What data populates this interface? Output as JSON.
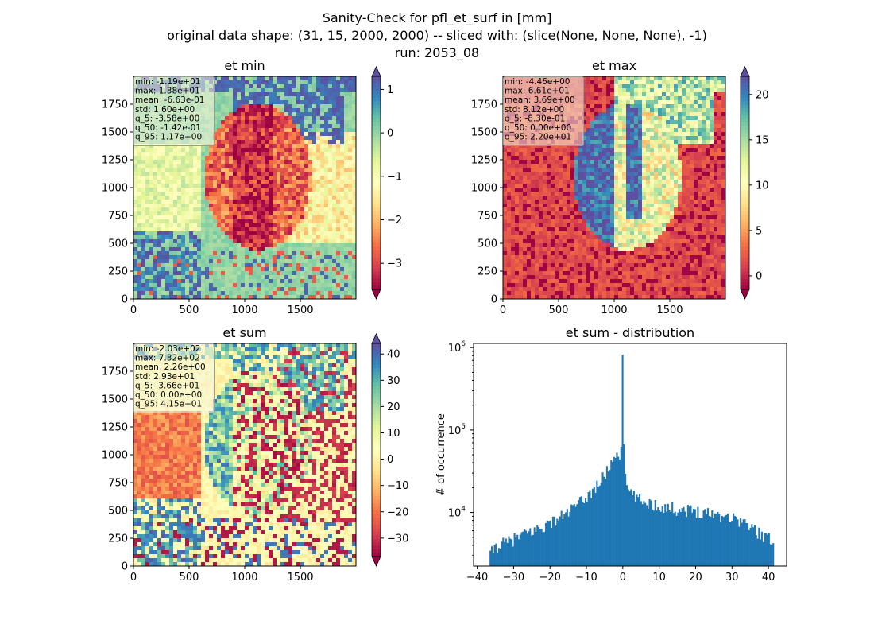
{
  "figure": {
    "title_lines": [
      "Sanity-Check for pfl_et_surf in [mm]",
      "original data shape: (31, 15, 2000, 2000) -- sliced with: (slice(None, None, None), -1)",
      "run: 2053_08"
    ]
  },
  "chart_data": [
    {
      "type": "heatmap",
      "title": "et min",
      "xlim": [
        0,
        2000
      ],
      "ylim": [
        0,
        2000
      ],
      "xticks": [
        "0",
        "500",
        "1000",
        "1500"
      ],
      "yticks": [
        "0",
        "250",
        "500",
        "750",
        "1000",
        "1250",
        "1500",
        "1750"
      ],
      "xtick_values": [
        0,
        500,
        1000,
        1500
      ],
      "ytick_values": [
        0,
        250,
        500,
        750,
        1000,
        1250,
        1500,
        1750
      ],
      "colorbar": {
        "cmap": "Spectral",
        "vmin": -3.6,
        "vmax": 1.3,
        "ticks": [
          "1",
          "0",
          "−1",
          "−2",
          "−3"
        ],
        "tick_values": [
          1,
          0,
          -1,
          -2,
          -3
        ],
        "extend": "both"
      },
      "stats": [
        "min: -1.19e+01",
        "max: 1.38e+01",
        "mean: -6.63e-01",
        "std: 1.60e+00",
        "q_5: -3.58e+00",
        "q_50: -1.42e-01",
        "q_95: 1.17e+00"
      ]
    },
    {
      "type": "heatmap",
      "title": "et max",
      "xlim": [
        0,
        2000
      ],
      "ylim": [
        0,
        2000
      ],
      "xticks": [
        "0",
        "500",
        "1000",
        "1500"
      ],
      "yticks": [
        "0",
        "250",
        "500",
        "750",
        "1000",
        "1250",
        "1500",
        "1750"
      ],
      "xtick_values": [
        0,
        500,
        1000,
        1500
      ],
      "ytick_values": [
        0,
        250,
        500,
        750,
        1000,
        1250,
        1500,
        1750
      ],
      "colorbar": {
        "cmap": "Spectral",
        "vmin": -1.5,
        "vmax": 22,
        "ticks": [
          "20",
          "15",
          "10",
          "5",
          "0"
        ],
        "tick_values": [
          20,
          15,
          10,
          5,
          0
        ],
        "extend": "both"
      },
      "stats": [
        "min: -4.46e+00",
        "max: 6.61e+01",
        "mean: 3.69e+00",
        "std: 8.12e+00",
        "q_5: -8.30e-01",
        "q_50: 0.00e+00",
        "q_95: 2.20e+01"
      ]
    },
    {
      "type": "heatmap",
      "title": "et sum",
      "xlim": [
        0,
        2000
      ],
      "ylim": [
        0,
        2000
      ],
      "xticks": [
        "0",
        "500",
        "1000",
        "1500"
      ],
      "yticks": [
        "0",
        "250",
        "500",
        "750",
        "1000",
        "1250",
        "1500",
        "1750"
      ],
      "xtick_values": [
        0,
        500,
        1000,
        1500
      ],
      "ytick_values": [
        0,
        250,
        500,
        750,
        1000,
        1250,
        1500,
        1750
      ],
      "colorbar": {
        "cmap": "Spectral",
        "vmin": -37,
        "vmax": 44,
        "ticks": [
          "40",
          "30",
          "20",
          "10",
          "0",
          "−10",
          "−20",
          "−30"
        ],
        "tick_values": [
          40,
          30,
          20,
          10,
          0,
          -10,
          -20,
          -30
        ],
        "extend": "both"
      },
      "stats": [
        "min: -2.03e+02",
        "max: 7.32e+02",
        "mean: 2.26e+00",
        "std: 2.93e+01",
        "q_5: -3.66e+01",
        "q_50: 0.00e+00",
        "q_95: 4.15e+01"
      ]
    },
    {
      "type": "bar",
      "title": "et sum - distribution",
      "ylabel": "# of occurrence",
      "xlabel": "",
      "yscale": "log",
      "color": "#1f77b4",
      "xlim": [
        -41,
        45
      ],
      "ylim_log10": [
        3.35,
        6.05
      ],
      "xticks": [
        "−40",
        "−30",
        "−20",
        "−10",
        "0",
        "10",
        "20",
        "30",
        "40"
      ],
      "xtick_values": [
        -40,
        -30,
        -20,
        -10,
        0,
        10,
        20,
        30,
        40
      ],
      "yticks": [
        "10",
        "10",
        "10"
      ],
      "ytick_exponents": [
        "4",
        "5",
        "6"
      ],
      "ytick_values": [
        10000,
        100000,
        1000000
      ],
      "profile_x": [
        -36.6,
        -35,
        -32,
        -29,
        -26,
        -23,
        -20,
        -17,
        -14,
        -11,
        -8,
        -5,
        -3,
        -1.5,
        -0.7,
        -0.3,
        0,
        0.4,
        1,
        2,
        5,
        10,
        15,
        20,
        25,
        30,
        33,
        36,
        39,
        41.5
      ],
      "profile_y": [
        3000,
        3900,
        4300,
        5000,
        5700,
        6400,
        7500,
        8900,
        11000,
        14000,
        19000,
        28000,
        42000,
        56000,
        50000,
        75000,
        820000,
        30000,
        21000,
        17000,
        14000,
        12000,
        11000,
        10500,
        9800,
        8800,
        7800,
        6200,
        5200,
        4300
      ]
    }
  ]
}
